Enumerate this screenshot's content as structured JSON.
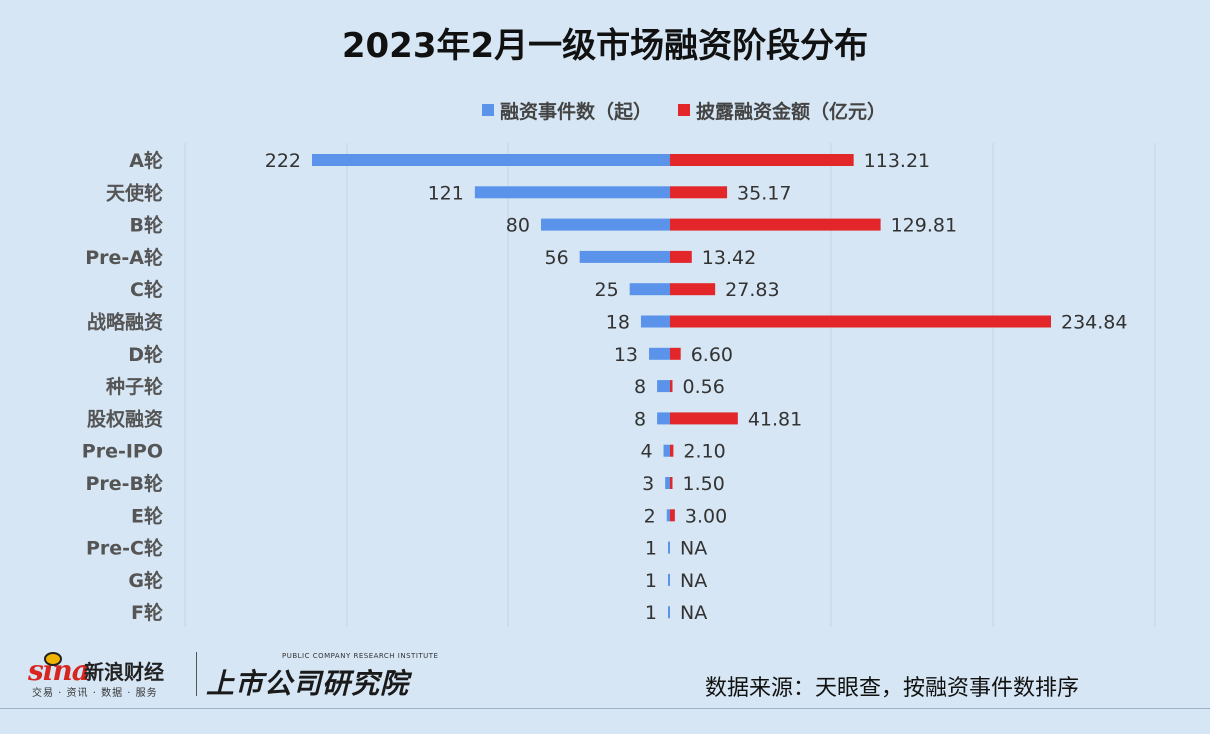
{
  "title": "2023年2月一级市场融资阶段分布",
  "legend": [
    {
      "label": "融资事件数（起）",
      "color": "#5b93ea"
    },
    {
      "label": "披露融资金额（亿元）",
      "color": "#e2262a"
    }
  ],
  "chart_data": {
    "type": "bar",
    "orientation": "horizontal-diverging",
    "categories": [
      "A轮",
      "天使轮",
      "B轮",
      "Pre-A轮",
      "C轮",
      "战略融资",
      "D轮",
      "种子轮",
      "股权融资",
      "Pre-IPO",
      "Pre-B轮",
      "E轮",
      "Pre-C轮",
      "G轮",
      "F轮"
    ],
    "series": [
      {
        "name": "融资事件数（起）",
        "color": "#5b93ea",
        "direction": "left",
        "values": [
          222,
          121,
          80,
          56,
          25,
          18,
          13,
          8,
          8,
          4,
          3,
          2,
          1,
          1,
          1
        ],
        "labels": [
          "222",
          "121",
          "80",
          "56",
          "25",
          "18",
          "13",
          "8",
          "8",
          "4",
          "3",
          "2",
          "1",
          "1",
          "1"
        ]
      },
      {
        "name": "披露融资金额（亿元）",
        "color": "#e2262a",
        "direction": "right",
        "values": [
          113.21,
          35.17,
          129.81,
          13.42,
          27.83,
          234.84,
          6.6,
          0.56,
          41.81,
          2.1,
          1.5,
          3.0,
          null,
          null,
          null
        ],
        "labels": [
          "113.21",
          "35.17",
          "129.81",
          "13.42",
          "27.83",
          "234.84",
          "6.60",
          "0.56",
          "41.81",
          "2.10",
          "1.50",
          "3.00",
          "NA",
          "NA",
          "NA"
        ]
      }
    ],
    "grid": true,
    "legend_position": "top"
  },
  "footer": {
    "sina_mark": "sina",
    "sina_name": "新浪财经",
    "sina_sub": "交易 · 资讯 · 数据 · 服务",
    "institute_en": "PUBLIC COMPANY RESEARCH INSTITUTE",
    "institute_cn": "上市公司研究院",
    "source": "数据来源：天眼查，按融资事件数排序"
  }
}
